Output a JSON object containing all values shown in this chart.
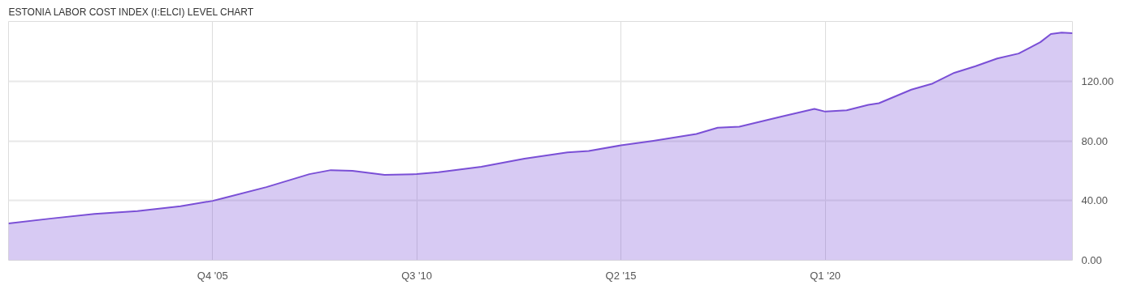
{
  "chart_data": {
    "type": "area",
    "title": "ESTONIA LABOR COST INDEX (I:ELCI) LEVEL CHART",
    "x": [
      "2001-01",
      "2002-01",
      "2003-01",
      "2004-01",
      "2005-01",
      "2005-10",
      "2006-01",
      "2007-01",
      "2008-01",
      "2008-07",
      "2009-01",
      "2009-10",
      "2010-07",
      "2011-01",
      "2012-01",
      "2013-01",
      "2014-01",
      "2014-07",
      "2015-04",
      "2016-01",
      "2017-01",
      "2017-07",
      "2018-01",
      "2019-01",
      "2019-10",
      "2020-01",
      "2020-07",
      "2021-01",
      "2021-04",
      "2022-01",
      "2022-07",
      "2023-01",
      "2023-07",
      "2024-01",
      "2024-07",
      "2025-01",
      "2025-04",
      "2025-07",
      "2025-10"
    ],
    "series": [
      {
        "color": "#7a4fd6",
        "values": [
          24.7,
          28,
          31,
          32.9,
          36.2,
          39.8,
          41.6,
          49,
          57.7,
          60.4,
          59.9,
          57.2,
          57.7,
          59,
          62.6,
          68.1,
          72.3,
          73.2,
          77,
          80,
          84.6,
          88.8,
          89.5,
          96.4,
          101.4,
          99.6,
          100.5,
          104.1,
          105.2,
          114.3,
          118.4,
          125.6,
          130,
          135.2,
          138.5,
          146.1,
          151.6,
          152.5,
          152.2
        ]
      }
    ],
    "xlim": [
      "2001-01",
      "2025-10"
    ],
    "xticks": [
      {
        "value": "2005-10",
        "label": "Q4 '05"
      },
      {
        "value": "2010-07",
        "label": "Q3 '10"
      },
      {
        "value": "2015-04",
        "label": "Q2 '15"
      },
      {
        "value": "2020-01",
        "label": "Q1 '20"
      }
    ],
    "ylim": [
      0,
      160
    ],
    "yticks": [
      {
        "value": 0,
        "label": "0.00"
      },
      {
        "value": 40,
        "label": "40.00"
      },
      {
        "value": 80,
        "label": "80.00"
      },
      {
        "value": 120,
        "label": "120.00"
      }
    ],
    "grid": true,
    "marker": "none",
    "line_style": "solid"
  }
}
